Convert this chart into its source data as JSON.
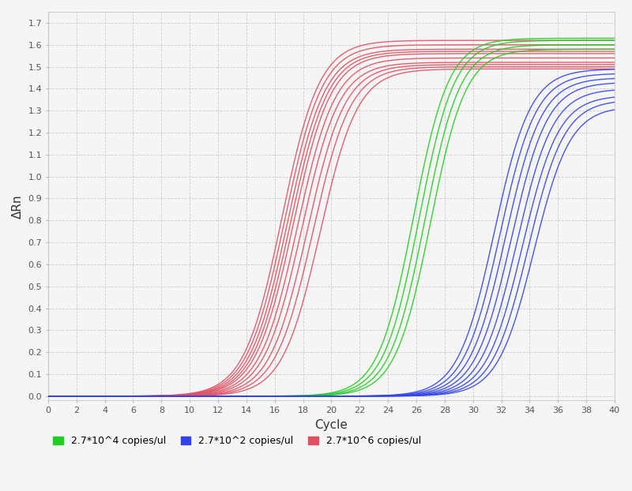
{
  "title": "",
  "xlabel": "Cycle",
  "ylabel": "ΔRn",
  "xlim": [
    0,
    40
  ],
  "ylim": [
    -0.02,
    1.75
  ],
  "yticks": [
    0.0,
    0.1,
    0.2,
    0.3,
    0.4,
    0.5,
    0.6,
    0.7,
    0.8,
    0.9,
    1.0,
    1.1,
    1.2,
    1.3,
    1.4,
    1.5,
    1.6,
    1.7
  ],
  "xticks": [
    0,
    2,
    4,
    6,
    8,
    10,
    12,
    14,
    16,
    18,
    20,
    22,
    24,
    26,
    28,
    30,
    32,
    34,
    36,
    38,
    40
  ],
  "background_color": "#f5f5f5",
  "grid_color": "#cccccc",
  "groups": [
    {
      "label": "2.7*10^6 copies/ul",
      "color": "#e05060",
      "n_curves": 10,
      "midpoints": [
        16.5,
        16.7,
        16.9,
        17.1,
        17.3,
        17.6,
        17.9,
        18.3,
        18.7,
        19.2
      ],
      "plateaus": [
        1.62,
        1.6,
        1.58,
        1.57,
        1.56,
        1.54,
        1.52,
        1.51,
        1.5,
        1.49
      ],
      "steepness": [
        0.75,
        0.75,
        0.75,
        0.75,
        0.75,
        0.75,
        0.75,
        0.75,
        0.75,
        0.75
      ]
    },
    {
      "label": "2.7*10^4 copies/ul",
      "color": "#22cc22",
      "n_curves": 4,
      "midpoints": [
        25.8,
        26.2,
        26.6,
        27.0
      ],
      "plateaus": [
        1.63,
        1.62,
        1.6,
        1.58
      ],
      "steepness": [
        0.8,
        0.8,
        0.8,
        0.8
      ]
    },
    {
      "label": "2.7*10^2 copies/ul",
      "color": "#3344ee",
      "n_curves": 8,
      "midpoints": [
        31.5,
        31.9,
        32.3,
        32.7,
        33.1,
        33.5,
        33.9,
        34.3
      ],
      "plateaus": [
        1.49,
        1.47,
        1.45,
        1.43,
        1.4,
        1.37,
        1.35,
        1.32
      ],
      "steepness": [
        0.78,
        0.78,
        0.78,
        0.78,
        0.78,
        0.78,
        0.78,
        0.78
      ]
    }
  ],
  "legend_colors": [
    "#22cc22",
    "#3344ee",
    "#e05060"
  ],
  "legend_labels": [
    "2.7*10^4 copies/ul",
    "2.7*10^2 copies/ul",
    "2.7*10^6 copies/ul"
  ]
}
